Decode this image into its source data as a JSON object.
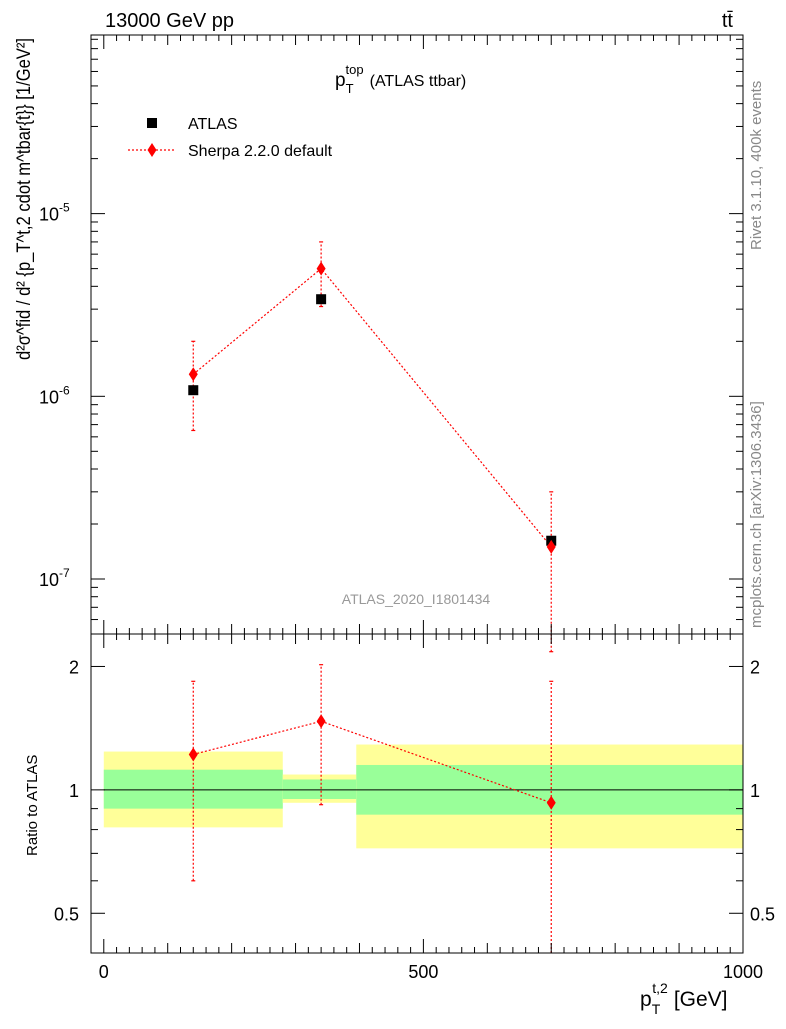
{
  "header": {
    "left": "13000 GeV pp",
    "right": "tt̄"
  },
  "side_labels": {
    "rivet": "Rivet 3.1.10,  400k events",
    "mcplots": "mcplots.cern.ch [arXiv:1306.3436]"
  },
  "watermark": "ATLAS_2020_I1801434",
  "chart_data": [
    {
      "type": "scatter",
      "title": "p_T^top (ATLAS ttbar)",
      "title_parts": {
        "base": "p",
        "sup": "top",
        "sub": "T",
        "rest": "(ATLAS ttbar)"
      },
      "ylabel": "d²σ^fid / d² {p_T^t,2 cdot m^tbar{t}} [1/GeV²]",
      "yscale": "log",
      "ylim": [
        5e-08,
        9.5e-05
      ],
      "xlim": [
        -20,
        1000
      ],
      "ytick_labels": [
        "10^-5",
        "10^-6",
        "10^-7"
      ],
      "legend": [
        "ATLAS",
        "Sherpa 2.2.0 default"
      ],
      "legend_placement": "top-left",
      "series": [
        {
          "name": "ATLAS",
          "x": [
            140,
            340,
            700
          ],
          "y": [
            1.08e-06,
            3.4e-06,
            1.62e-07
          ]
        },
        {
          "name": "Sherpa 2.2.0 default",
          "x": [
            140,
            340,
            700
          ],
          "y": [
            1.32e-06,
            5e-06,
            1.5e-07
          ],
          "err_low": [
            6.5e-07,
            3.1e-06,
            4e-08
          ],
          "err_high": [
            2e-06,
            7e-06,
            3e-07
          ]
        }
      ]
    },
    {
      "type": "scatter",
      "ylabel": "Ratio to ATLAS",
      "xlabel": "p_T^t,2 [GeV]",
      "xlabel_parts": {
        "base": "p",
        "sup": "t,2",
        "sub": "T",
        "rest": "[GeV]"
      },
      "yscale": "log",
      "ylim": [
        0.4,
        2.4
      ],
      "xlim": [
        -20,
        1000
      ],
      "xticks": [
        0,
        500,
        1000
      ],
      "yticks": [
        0.5,
        1,
        2
      ],
      "bins": [
        {
          "x0": 0,
          "x1": 280,
          "band1_lo": 0.9,
          "band1_hi": 1.12,
          "band2_lo": 0.81,
          "band2_hi": 1.24
        },
        {
          "x0": 280,
          "x1": 395,
          "band1_lo": 0.95,
          "band1_hi": 1.06,
          "band2_lo": 0.93,
          "band2_hi": 1.09
        },
        {
          "x0": 395,
          "x1": 1000,
          "band1_lo": 0.87,
          "band1_hi": 1.15,
          "band2_lo": 0.72,
          "band2_hi": 1.29
        }
      ],
      "series": [
        {
          "name": "Sherpa 2.2.0 default",
          "x": [
            140,
            340,
            700
          ],
          "y": [
            1.22,
            1.47,
            0.93
          ],
          "err_low": [
            0.6,
            0.92,
            0.3
          ],
          "err_high": [
            1.84,
            2.02,
            1.84
          ]
        }
      ],
      "band_colors": {
        "inner": "#99ff99",
        "outer": "#ffff99"
      }
    }
  ],
  "colors": {
    "mc": "#ff0000",
    "data": "#000000"
  }
}
